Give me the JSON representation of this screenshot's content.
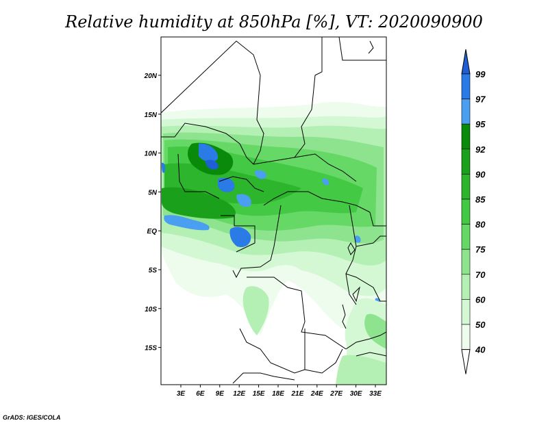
{
  "title": "Relative humidity at 850hPa [%], VT: 2020090900",
  "lat_labels": [
    "20N",
    "15N",
    "10N",
    "5N",
    "EQ",
    "5S",
    "10S",
    "15S"
  ],
  "lon_labels": [
    "3E",
    "6E",
    "9E",
    "12E",
    "15E",
    "18E",
    "21E",
    "24E",
    "27E",
    "30E",
    "33E"
  ],
  "colorbar": {
    "levels": [
      "99",
      "97",
      "95",
      "92",
      "90",
      "85",
      "80",
      "75",
      "70",
      "60",
      "50",
      "40"
    ],
    "colors": [
      "#1e5fd6",
      "#2b7be6",
      "#4a9ff0",
      "#0a8a0a",
      "#1aa01a",
      "#2db52d",
      "#44c944",
      "#66d866",
      "#8ee48e",
      "#b4efb4",
      "#d4f7d4",
      "#edfced"
    ]
  },
  "footer": "GrADS: IGES/COLA"
}
